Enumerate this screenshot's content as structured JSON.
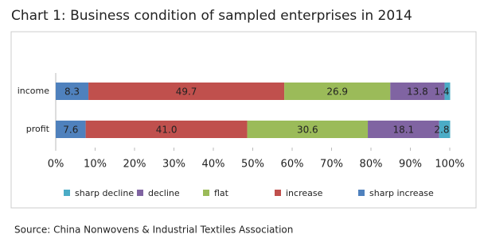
{
  "chart_data": {
    "type": "stacked-bar-horizontal",
    "title": "Chart 1: Business condition of sampled enterprises in 2014",
    "source": "Source: China Nonwovens & Industrial Textiles Association",
    "categories": [
      "income",
      "profit"
    ],
    "series": [
      {
        "name": "sharp increase",
        "color": "#4f81bd",
        "values": [
          8.3,
          7.6
        ]
      },
      {
        "name": "increase",
        "color": "#c0504d",
        "values": [
          49.7,
          41.0
        ],
        "value_labels": [
          "49.7",
          "41.0"
        ]
      },
      {
        "name": "flat",
        "color": "#9bbb59",
        "values": [
          26.9,
          30.6
        ]
      },
      {
        "name": "decline",
        "color": "#8064a2",
        "values": [
          13.8,
          18.1
        ]
      },
      {
        "name": "sharp decline",
        "color": "#4bacc6",
        "values": [
          1.4,
          2.8
        ]
      }
    ],
    "xlim": [
      0,
      100
    ],
    "xticks": [
      {
        "value": 0,
        "label": "0%"
      },
      {
        "value": 10,
        "label": "10%"
      },
      {
        "value": 20,
        "label": "20%"
      },
      {
        "value": 30,
        "label": "30%"
      },
      {
        "value": 40,
        "label": "40%"
      },
      {
        "value": 50,
        "label": "50%"
      },
      {
        "value": 60,
        "label": "60%"
      },
      {
        "value": 70,
        "label": "70%"
      },
      {
        "value": 80,
        "label": "80%"
      },
      {
        "value": 90,
        "label": "90%"
      },
      {
        "value": 100,
        "label": "100%"
      }
    ],
    "legend": "bottom"
  }
}
